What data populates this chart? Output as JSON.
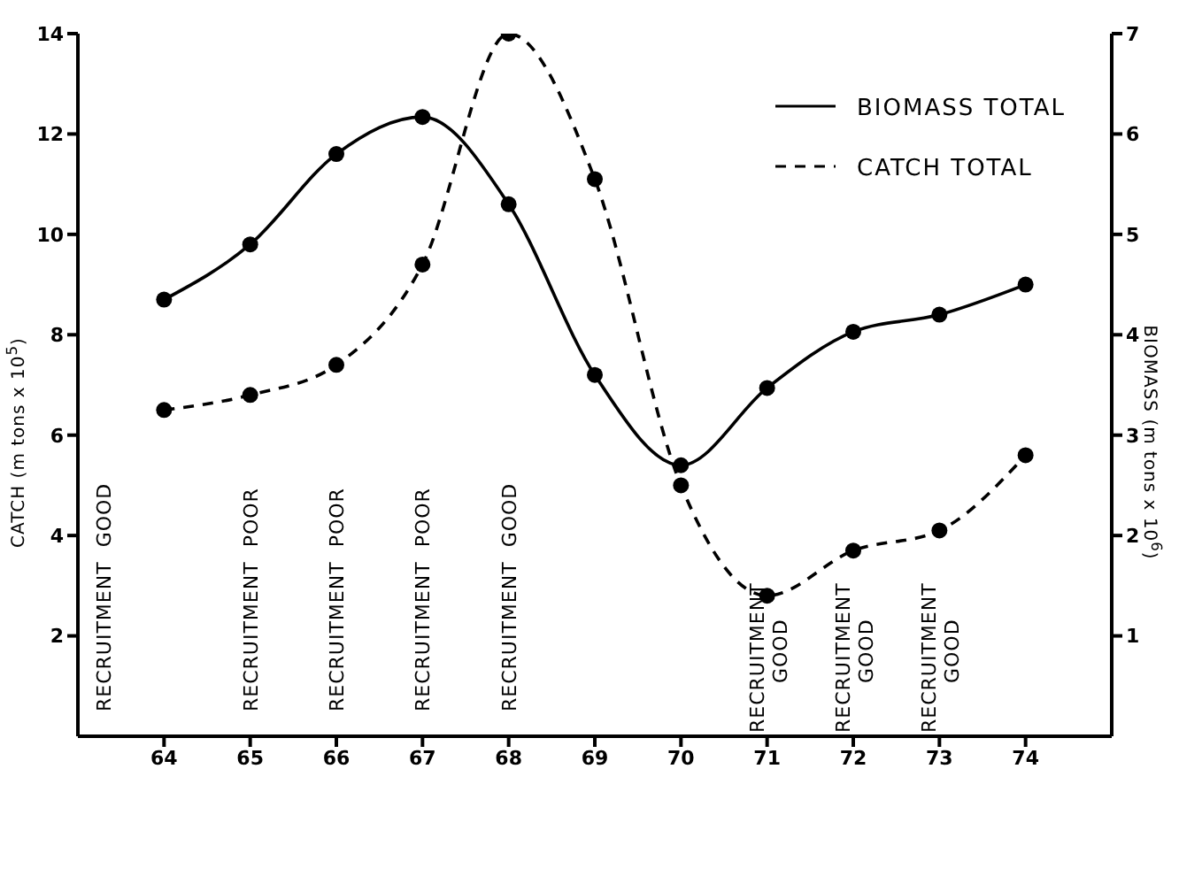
{
  "chart_data": {
    "type": "line",
    "xlabel": null,
    "ylabel": "CATCH (m tons x 10$^{5}$)",
    "y2label": "BIOMASS (m tons x 10$^{6}$)",
    "x": [
      64,
      65,
      66,
      67,
      68,
      69,
      70,
      71,
      72,
      73,
      74
    ],
    "series": [
      {
        "name": "BIOMASS TOTAL",
        "color": "#000000",
        "line_style": "solid",
        "axis": "y2",
        "values": [
          4.35,
          4.9,
          5.8,
          6.17,
          5.3,
          3.6,
          2.7,
          3.47,
          4.03,
          4.2,
          4.5
        ]
      },
      {
        "name": "CATCH TOTAL",
        "color": "#000000",
        "line_style": "dashed",
        "values": [
          6.5,
          6.8,
          7.4,
          9.4,
          14.0,
          11.1,
          5.0,
          2.8,
          3.7,
          4.1,
          5.6
        ]
      }
    ],
    "xlim": [
      63,
      75
    ],
    "xticks": [
      64,
      65,
      66,
      67,
      68,
      69,
      70,
      71,
      72,
      73,
      74
    ],
    "ylim": [
      0,
      14
    ],
    "yticks": [
      2,
      4,
      6,
      8,
      10,
      12,
      14
    ],
    "y2lim": [
      0,
      7
    ],
    "y2ticks": [
      1,
      2,
      3,
      4,
      5,
      6,
      7
    ],
    "marker": "circle",
    "grid": false,
    "legend": "top right",
    "annotations": [
      "RECRUITMENT  GOOD",
      "RECRUITMENT  POOR",
      "RECRUITMENT  POOR",
      "RECRUITMENT  POOR",
      "RECRUITMENT  GOOD",
      "RECRUITMENT\nGOOD",
      "RECRUITMENT\nGOOD",
      "RECRUITMENT\nGOOD"
    ]
  }
}
